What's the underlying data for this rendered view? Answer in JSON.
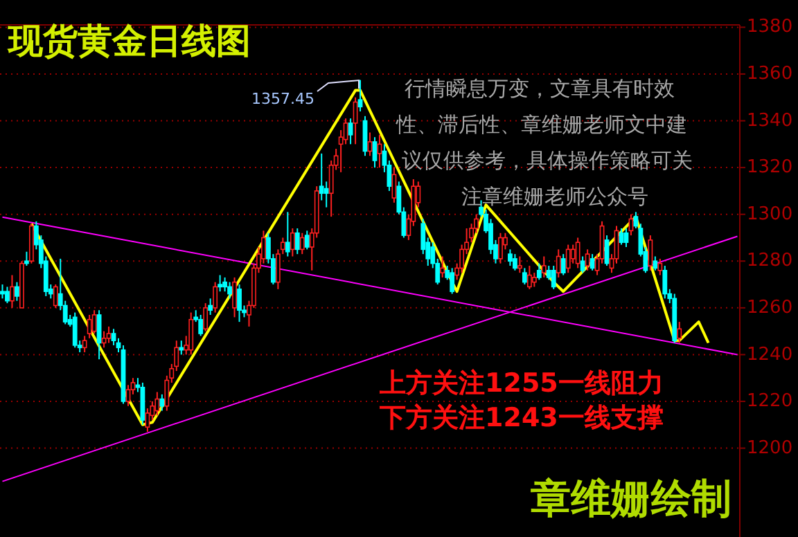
{
  "chart_data": {
    "type": "candlestick",
    "title": "现货黄金日线图",
    "categories": [
      null,
      null,
      null,
      null,
      null,
      null,
      null,
      null,
      null,
      null,
      null,
      null,
      null,
      null,
      null,
      null,
      null,
      null,
      null,
      null,
      null,
      null,
      null,
      null,
      null,
      null,
      null,
      null,
      null,
      null,
      null,
      null,
      null,
      null,
      null,
      null,
      null,
      null,
      null,
      null,
      null,
      null,
      null,
      null,
      null,
      null,
      null,
      null,
      null,
      null,
      null,
      null,
      null,
      null,
      null,
      null,
      null,
      null,
      null,
      null,
      null,
      null,
      null,
      null,
      null,
      null,
      null,
      null,
      null,
      null,
      null,
      null,
      null,
      null,
      null,
      null,
      null,
      null,
      null,
      null,
      null,
      null,
      null,
      null,
      null,
      null,
      null,
      null,
      null,
      null,
      null,
      null,
      null,
      null,
      null,
      null,
      null,
      null,
      null,
      null,
      null,
      null,
      null,
      null,
      null,
      null,
      null,
      null,
      null,
      null,
      null,
      null,
      null,
      null,
      null,
      null,
      null,
      null,
      null,
      null,
      null,
      null,
      null,
      null,
      null,
      null,
      null,
      null,
      null,
      null,
      null,
      null,
      null,
      null,
      null,
      null,
      null,
      null,
      null,
      null,
      null,
      null,
      null,
      null,
      null,
      null,
      null,
      null,
      null,
      null,
      null,
      null,
      null
    ],
    "ohlc": [
      [
        1267,
        1270,
        1264,
        1266
      ],
      [
        1267,
        1269,
        1262,
        1263
      ],
      [
        1263,
        1274,
        1260,
        1269
      ],
      [
        1269,
        1271,
        1263,
        1265
      ],
      [
        1260,
        1280,
        1260,
        1279
      ],
      [
        1280,
        1284,
        1278,
        1279
      ],
      [
        1280,
        1296,
        1279,
        1295
      ],
      [
        1295,
        1297,
        1285,
        1287
      ],
      [
        1289,
        1291,
        1277,
        1279
      ],
      [
        1280,
        1282,
        1265,
        1267
      ],
      [
        1268,
        1270,
        1264,
        1266
      ],
      [
        1261,
        1270,
        1260,
        1269
      ],
      [
        1266,
        1281,
        1259,
        1261
      ],
      [
        1261,
        1263,
        1253,
        1254
      ],
      [
        1255,
        1257,
        1252,
        1253
      ],
      [
        1256,
        1258,
        1243,
        1244
      ],
      [
        1244,
        1246,
        1241,
        1243
      ],
      [
        1243,
        1248,
        1241,
        1246
      ],
      [
        1249,
        1257,
        1247,
        1255
      ],
      [
        1250,
        1259,
        1249,
        1257
      ],
      [
        1257,
        1259,
        1238,
        1245
      ],
      [
        1245,
        1250,
        1243,
        1247
      ],
      [
        1247,
        1252,
        1245,
        1249
      ],
      [
        1249,
        1251,
        1244,
        1246
      ],
      [
        1245,
        1247,
        1241,
        1243
      ],
      [
        1242,
        1244,
        1219,
        1220
      ],
      [
        1220,
        1227,
        1218,
        1225
      ],
      [
        1225,
        1230,
        1223,
        1228
      ],
      [
        1227,
        1230,
        1224,
        1226
      ],
      [
        1226,
        1228,
        1210,
        1212
      ],
      [
        1209,
        1217,
        1207,
        1215
      ],
      [
        1214,
        1220,
        1212,
        1218
      ],
      [
        1216,
        1224,
        1214,
        1221
      ],
      [
        1221,
        1223,
        1216,
        1218
      ],
      [
        1218,
        1231,
        1216,
        1229
      ],
      [
        1230,
        1236,
        1228,
        1234
      ],
      [
        1235,
        1246,
        1233,
        1243
      ],
      [
        1243,
        1246,
        1240,
        1242
      ],
      [
        1242,
        1248,
        1240,
        1244
      ],
      [
        1242,
        1258,
        1240,
        1255
      ],
      [
        1256,
        1259,
        1254,
        1255
      ],
      [
        1255,
        1257,
        1248,
        1249
      ],
      [
        1251,
        1262,
        1250,
        1260
      ],
      [
        1261,
        1264,
        1257,
        1259
      ],
      [
        1260,
        1271,
        1258,
        1269
      ],
      [
        1270,
        1274,
        1267,
        1269
      ],
      [
        1271,
        1273,
        1267,
        1269
      ],
      [
        1269,
        1271,
        1264,
        1266
      ],
      [
        1260,
        1273,
        1256,
        1271
      ],
      [
        1268,
        1270,
        1254,
        1259
      ],
      [
        1259,
        1261,
        1256,
        1258
      ],
      [
        1257,
        1263,
        1252,
        1261
      ],
      [
        1261,
        1279,
        1260,
        1277
      ],
      [
        1277,
        1286,
        1275,
        1283
      ],
      [
        1281,
        1293,
        1279,
        1290
      ],
      [
        1290,
        1292,
        1279,
        1281
      ],
      [
        1281,
        1283,
        1270,
        1271
      ],
      [
        1271,
        1285,
        1268,
        1283
      ],
      [
        1285,
        1290,
        1283,
        1288
      ],
      [
        1288,
        1301,
        1282,
        1284
      ],
      [
        1285,
        1294,
        1282,
        1292
      ],
      [
        1292,
        1294,
        1283,
        1285
      ],
      [
        1285,
        1292,
        1283,
        1290
      ],
      [
        1291,
        1293,
        1285,
        1286
      ],
      [
        1286,
        1294,
        1276,
        1292
      ],
      [
        1292,
        1312,
        1290,
        1310
      ],
      [
        1312,
        1326,
        1306,
        1309
      ],
      [
        1311,
        1314,
        1303,
        1309
      ],
      [
        1309,
        1323,
        1299,
        1321
      ],
      [
        1321,
        1328,
        1319,
        1325
      ],
      [
        1330,
        1336,
        1318,
        1333
      ],
      [
        1332,
        1341,
        1330,
        1339
      ],
      [
        1339,
        1341,
        1330,
        1334
      ],
      [
        1339,
        1350,
        1330,
        1348
      ],
      [
        1349,
        1357.45,
        1344,
        1346
      ],
      [
        1340,
        1342,
        1325,
        1327
      ],
      [
        1327,
        1335,
        1325,
        1331
      ],
      [
        1331,
        1333,
        1320,
        1323
      ],
      [
        1326,
        1334,
        1320,
        1330
      ],
      [
        1327,
        1330,
        1318,
        1321
      ],
      [
        1321,
        1323,
        1310,
        1312
      ],
      [
        1307,
        1320,
        1305,
        1317
      ],
      [
        1312,
        1314,
        1300,
        1301
      ],
      [
        1301,
        1303,
        1290,
        1291
      ],
      [
        1291,
        1300,
        1289,
        1298
      ],
      [
        1297,
        1315,
        1295,
        1312
      ],
      [
        1305,
        1314,
        1303,
        1312
      ],
      [
        1296,
        1298,
        1283,
        1285
      ],
      [
        1288,
        1290,
        1278,
        1281
      ],
      [
        1286,
        1288,
        1277,
        1279
      ],
      [
        1279,
        1281,
        1270,
        1271
      ],
      [
        1275,
        1282,
        1273,
        1277
      ],
      [
        1276,
        1278,
        1272,
        1273
      ],
      [
        1275,
        1277,
        1266,
        1267
      ],
      [
        1274,
        1279,
        1272,
        1277
      ],
      [
        1277,
        1287,
        1275,
        1285
      ],
      [
        1285,
        1294,
        1283,
        1288
      ],
      [
        1290,
        1296,
        1288,
        1294
      ],
      [
        1294,
        1300,
        1292,
        1298
      ],
      [
        1303,
        1306,
        1299,
        1300
      ],
      [
        1300,
        1302,
        1292,
        1293
      ],
      [
        1296,
        1298,
        1283,
        1285
      ],
      [
        1287,
        1289,
        1279,
        1281
      ],
      [
        1281,
        1292,
        1279,
        1290
      ],
      [
        1287,
        1292,
        1285,
        1290
      ],
      [
        1283,
        1285,
        1278,
        1280
      ],
      [
        1281,
        1283,
        1276,
        1277
      ],
      [
        1277,
        1282,
        1275,
        1278
      ],
      [
        1275,
        1277,
        1270,
        1271
      ],
      [
        1269,
        1278,
        1268,
        1274
      ],
      [
        1271,
        1275,
        1269,
        1273
      ],
      [
        1276,
        1279,
        1272,
        1273
      ],
      [
        1275,
        1282,
        1273,
        1278
      ],
      [
        1276,
        1278,
        1272,
        1273
      ],
      [
        1276,
        1278,
        1268,
        1269
      ],
      [
        1275,
        1285,
        1273,
        1282
      ],
      [
        1281,
        1283,
        1274,
        1275
      ],
      [
        1277,
        1287,
        1275,
        1285
      ],
      [
        1281,
        1287,
        1279,
        1285
      ],
      [
        1279,
        1290,
        1277,
        1288
      ],
      [
        1280,
        1282,
        1275,
        1276
      ],
      [
        1278,
        1285,
        1276,
        1283
      ],
      [
        1281,
        1283,
        1276,
        1277
      ],
      [
        1276,
        1283,
        1274,
        1281
      ],
      [
        1281,
        1297,
        1279,
        1295
      ],
      [
        1289,
        1291,
        1278,
        1279
      ],
      [
        1277,
        1283,
        1275,
        1281
      ],
      [
        1281,
        1295,
        1279,
        1293
      ],
      [
        1292,
        1294,
        1287,
        1288
      ],
      [
        1292,
        1294,
        1286,
        1288
      ],
      [
        1293,
        1300,
        1291,
        1298
      ],
      [
        1299,
        1301,
        1294,
        1295
      ],
      [
        1294,
        1296,
        1282,
        1283
      ],
      [
        1284,
        1286,
        1275,
        1276
      ],
      [
        1278,
        1291,
        1276,
        1289
      ],
      [
        1280,
        1282,
        1276,
        1277
      ],
      [
        1276,
        1281,
        1274,
        1279
      ],
      [
        1276,
        1278,
        1264,
        1266
      ],
      [
        1266,
        1268,
        1262,
        1264
      ],
      [
        1264,
        1266,
        1245,
        1246
      ],
      [
        1247,
        1254,
        1245,
        1251
      ],
      null,
      null,
      null,
      null,
      null,
      null,
      null,
      null,
      null,
      null,
      null,
      null
    ],
    "series": [
      {
        "type": "line",
        "color": "#ff00ff",
        "values": [
          1298.8,
          null,
          null,
          null,
          null,
          null,
          null,
          null,
          null,
          null,
          null,
          null,
          null,
          null,
          null,
          null,
          null,
          null,
          null,
          null,
          null,
          null,
          null,
          null,
          null,
          null,
          null,
          null,
          null,
          null,
          null,
          null,
          null,
          null,
          null,
          null,
          null,
          null,
          null,
          null,
          null,
          null,
          null,
          null,
          null,
          null,
          null,
          null,
          null,
          null,
          null,
          null,
          null,
          null,
          null,
          null,
          null,
          null,
          null,
          null,
          null,
          null,
          null,
          null,
          null,
          null,
          null,
          null,
          null,
          null,
          null,
          null,
          null,
          null,
          null,
          null,
          null,
          null,
          null,
          null,
          null,
          null,
          null,
          null,
          null,
          null,
          null,
          null,
          null,
          null,
          null,
          null,
          null,
          null,
          null,
          null,
          null,
          null,
          null,
          null,
          null,
          null,
          null,
          null,
          null,
          null,
          null,
          null,
          null,
          null,
          null,
          null,
          null,
          null,
          null,
          null,
          null,
          null,
          null,
          null,
          null,
          null,
          null,
          null,
          null,
          null,
          null,
          null,
          null,
          null,
          null,
          null,
          null,
          null,
          null,
          null,
          null,
          null,
          null,
          null,
          null,
          null,
          null,
          null,
          null,
          null,
          null,
          null,
          null,
          null,
          null,
          null,
          1240.0
        ]
      },
      {
        "type": "line",
        "color": "#ff00ff",
        "values": [
          1185.8,
          null,
          null,
          null,
          null,
          null,
          null,
          null,
          null,
          null,
          null,
          null,
          null,
          null,
          null,
          null,
          null,
          null,
          null,
          null,
          null,
          null,
          null,
          null,
          null,
          null,
          null,
          null,
          null,
          null,
          null,
          null,
          null,
          null,
          null,
          null,
          null,
          null,
          null,
          null,
          null,
          null,
          null,
          null,
          null,
          null,
          null,
          null,
          null,
          null,
          null,
          null,
          null,
          null,
          null,
          null,
          null,
          null,
          null,
          null,
          null,
          null,
          null,
          null,
          null,
          null,
          null,
          null,
          null,
          null,
          null,
          null,
          null,
          null,
          null,
          null,
          null,
          null,
          null,
          null,
          null,
          null,
          null,
          null,
          null,
          null,
          null,
          null,
          null,
          null,
          null,
          null,
          null,
          null,
          null,
          null,
          null,
          null,
          null,
          null,
          null,
          null,
          null,
          null,
          null,
          null,
          null,
          null,
          null,
          null,
          null,
          null,
          null,
          null,
          null,
          null,
          null,
          null,
          null,
          null,
          null,
          null,
          null,
          null,
          null,
          null,
          null,
          null,
          null,
          null,
          null,
          null,
          null,
          null,
          null,
          null,
          null,
          null,
          null,
          null,
          null,
          null,
          null,
          null,
          null,
          null,
          null,
          null,
          null,
          null,
          null,
          null,
          1290.6
        ]
      },
      {
        "type": "line",
        "color": "#ffff00",
        "values": [
          null,
          null,
          null,
          null,
          null,
          null,
          1296,
          null,
          null,
          null,
          null,
          null,
          null,
          null,
          null,
          null,
          null,
          null,
          null,
          null,
          null,
          null,
          null,
          null,
          null,
          null,
          null,
          null,
          null,
          1210,
          null,
          1211,
          null,
          null,
          null,
          null,
          null,
          null,
          null,
          null,
          null,
          null,
          null,
          null,
          null,
          null,
          null,
          null,
          null,
          null,
          null,
          null,
          null,
          null,
          null,
          null,
          null,
          null,
          null,
          null,
          null,
          null,
          null,
          null,
          null,
          null,
          null,
          null,
          null,
          null,
          null,
          null,
          null,
          1353,
          1353,
          null,
          null,
          null,
          null,
          null,
          null,
          null,
          null,
          null,
          null,
          null,
          null,
          null,
          null,
          null,
          null,
          null,
          null,
          1271,
          1267,
          null,
          null,
          null,
          null,
          null,
          1304,
          null,
          null,
          null,
          null,
          null,
          null,
          null,
          null,
          null,
          null,
          null,
          null,
          null,
          1271,
          null,
          1267,
          null,
          null,
          null,
          null,
          null,
          null,
          null,
          null,
          null,
          null,
          null,
          null,
          null,
          null,
          1299,
          null,
          null,
          null,
          null,
          null,
          null,
          null,
          1246,
          1246,
          null,
          null,
          null,
          1254,
          null,
          1245,
          null,
          null,
          null,
          null,
          null,
          null
        ]
      }
    ],
    "ylim": [
      1162,
      1381
    ],
    "yticks": [
      1200,
      1220,
      1240,
      1260,
      1280,
      1300,
      1320,
      1340,
      1360,
      1380
    ],
    "grid": "y",
    "tick_labels": "y",
    "annotations": [
      "行情瞬息万变，文章具有时效",
      "性、滞后性、章维姗老师文中建",
      "议仅供参考，具体操作策略可关",
      "注章维姗老师公众号",
      "上方关注1255一线阻力",
      "下方关注1243一线支撑",
      "章维姗绘制",
      "1357.45"
    ]
  }
}
